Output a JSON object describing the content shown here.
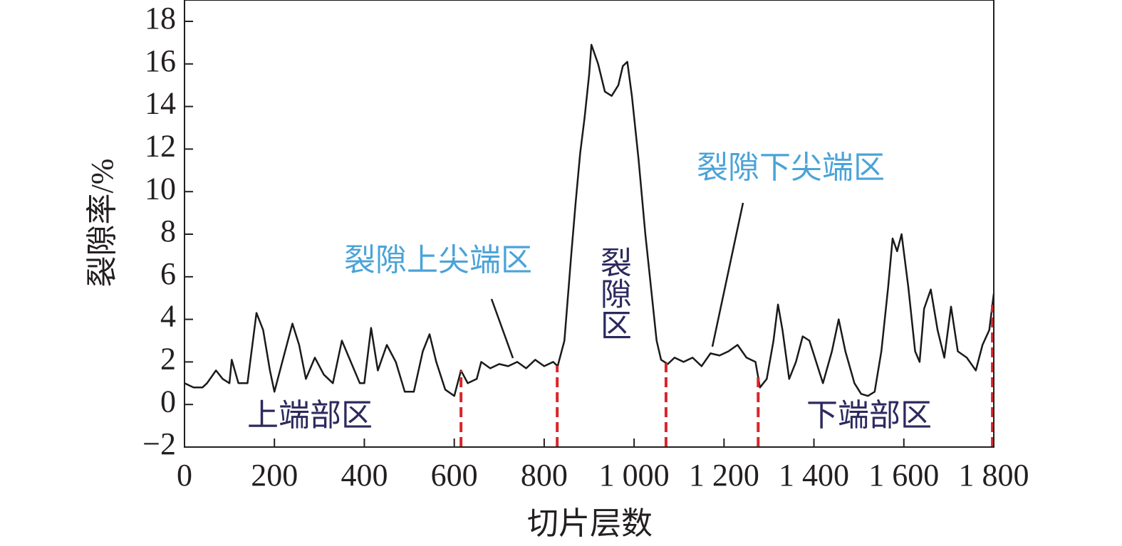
{
  "chart_data": {
    "type": "line",
    "xlabel": "切片层数",
    "ylabel": "裂隙率/%",
    "x": [
      0,
      20,
      40,
      50,
      70,
      85,
      100,
      105,
      120,
      140,
      160,
      175,
      190,
      200,
      220,
      240,
      255,
      270,
      290,
      310,
      330,
      350,
      370,
      390,
      400,
      415,
      430,
      450,
      470,
      490,
      510,
      530,
      545,
      560,
      580,
      600,
      615,
      630,
      650,
      660,
      680,
      700,
      720,
      740,
      760,
      780,
      800,
      820,
      830,
      845,
      860,
      870,
      880,
      890,
      900,
      905,
      920,
      935,
      950,
      965,
      975,
      985,
      995,
      1010,
      1025,
      1040,
      1050,
      1060,
      1075,
      1090,
      1110,
      1130,
      1150,
      1170,
      1190,
      1210,
      1230,
      1250,
      1270,
      1280,
      1295,
      1310,
      1320,
      1330,
      1345,
      1360,
      1375,
      1390,
      1405,
      1420,
      1440,
      1455,
      1470,
      1490,
      1505,
      1520,
      1535,
      1550,
      1565,
      1575,
      1585,
      1595,
      1610,
      1625,
      1635,
      1645,
      1660,
      1675,
      1690,
      1705,
      1720,
      1740,
      1760,
      1775,
      1790,
      1800
    ],
    "series": [
      {
        "color": "#1a1a1a",
        "values": [
          1.0,
          0.8,
          0.8,
          1.0,
          1.6,
          1.2,
          1.0,
          2.1,
          1.0,
          1.0,
          4.3,
          3.5,
          1.6,
          0.6,
          2.2,
          3.8,
          2.8,
          1.2,
          2.2,
          1.4,
          1.0,
          3.0,
          2.0,
          1.0,
          1.0,
          3.6,
          1.6,
          2.8,
          2.0,
          0.6,
          0.6,
          2.5,
          3.3,
          2.0,
          0.7,
          0.4,
          1.6,
          1.0,
          1.2,
          2.0,
          1.7,
          1.9,
          1.8,
          2.0,
          1.7,
          2.1,
          1.8,
          2.0,
          1.8,
          3.0,
          7.0,
          9.5,
          11.8,
          13.5,
          15.5,
          16.9,
          16.0,
          14.7,
          14.5,
          15.0,
          15.9,
          16.1,
          14.5,
          11.5,
          8.0,
          5.0,
          3.0,
          2.1,
          1.9,
          2.2,
          2.0,
          2.2,
          1.8,
          2.4,
          2.3,
          2.5,
          2.8,
          2.2,
          2.0,
          0.8,
          1.2,
          3.0,
          4.7,
          3.5,
          1.2,
          2.0,
          3.2,
          3.0,
          2.0,
          1.0,
          2.5,
          4.0,
          2.5,
          1.0,
          0.5,
          0.4,
          0.6,
          2.5,
          5.5,
          7.8,
          7.2,
          8.0,
          5.5,
          2.5,
          2.0,
          4.5,
          5.4,
          3.5,
          2.2,
          4.6,
          2.5,
          2.2,
          1.6,
          2.8,
          3.5,
          5.2
        ]
      }
    ],
    "dividers": [
      615,
      829,
      1071,
      1276,
      1797
    ],
    "divider_color": "#d7262b",
    "xlim": [
      0,
      1800
    ],
    "xticks": [
      0,
      200,
      400,
      600,
      800,
      {
        "value": 1000,
        "label": "1 000"
      },
      {
        "value": 1200,
        "label": "1 200"
      },
      {
        "value": 1400,
        "label": "1 400"
      },
      {
        "value": 1600,
        "label": "1 600"
      },
      {
        "value": 1800,
        "label": "1 800"
      }
    ],
    "ylim": [
      -2,
      19
    ],
    "yticks": [
      {
        "value": -2,
        "label": "−2"
      },
      0,
      2,
      4,
      6,
      8,
      10,
      12,
      14,
      16,
      18
    ],
    "annotations": [
      "裂隙上尖端区",
      "裂隙下尖端区",
      "裂隙区",
      "上端部区",
      "下端部区"
    ]
  }
}
